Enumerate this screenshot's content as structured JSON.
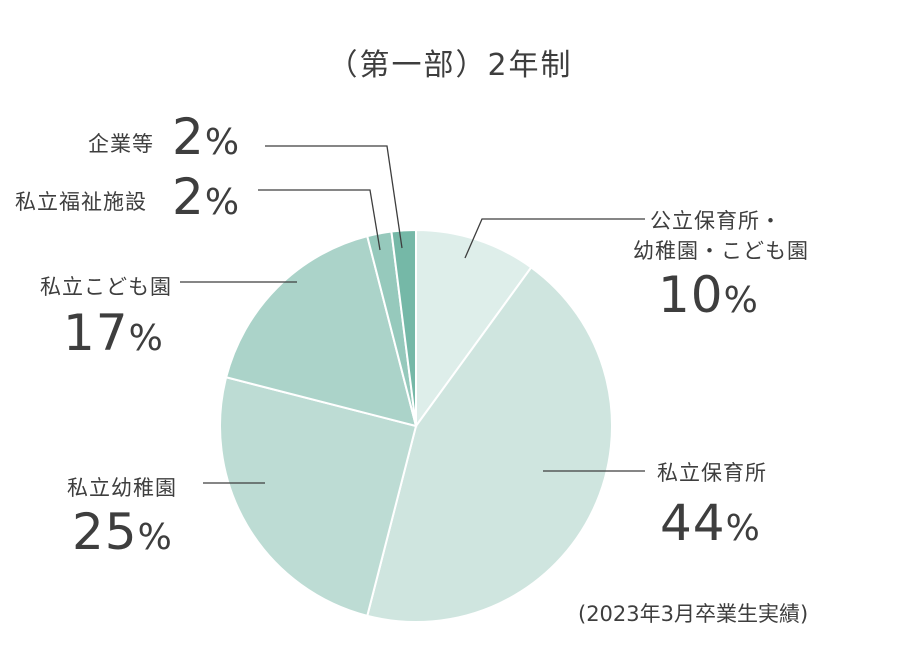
{
  "chart_data": {
    "type": "pie",
    "title": "（第一部）2年制",
    "note": "(2023年3月卒業生実績)",
    "percent_suffix": "%",
    "start_angle_deg": 0,
    "direction": "clockwise",
    "slices": [
      {
        "label": "公立保育所・幼稚園・こども園",
        "label_lines": [
          "公立保育所・",
          "幼稚園・こども園"
        ],
        "value": 10,
        "color": "#deeeea"
      },
      {
        "label": "私立保育所",
        "label_lines": [
          "私立保育所"
        ],
        "value": 44,
        "color": "#cfe5df"
      },
      {
        "label": "私立幼稚園",
        "label_lines": [
          "私立幼稚園"
        ],
        "value": 25,
        "color": "#bddcd4"
      },
      {
        "label": "私立こども園",
        "label_lines": [
          "私立こども園"
        ],
        "value": 17,
        "color": "#abd3c9"
      },
      {
        "label": "私立福祉施設",
        "label_lines": [
          "私立福祉施設"
        ],
        "value": 2,
        "color": "#96c9bc"
      },
      {
        "label": "企業等",
        "label_lines": [
          "企業等"
        ],
        "value": 2,
        "color": "#75b8a7"
      }
    ]
  }
}
